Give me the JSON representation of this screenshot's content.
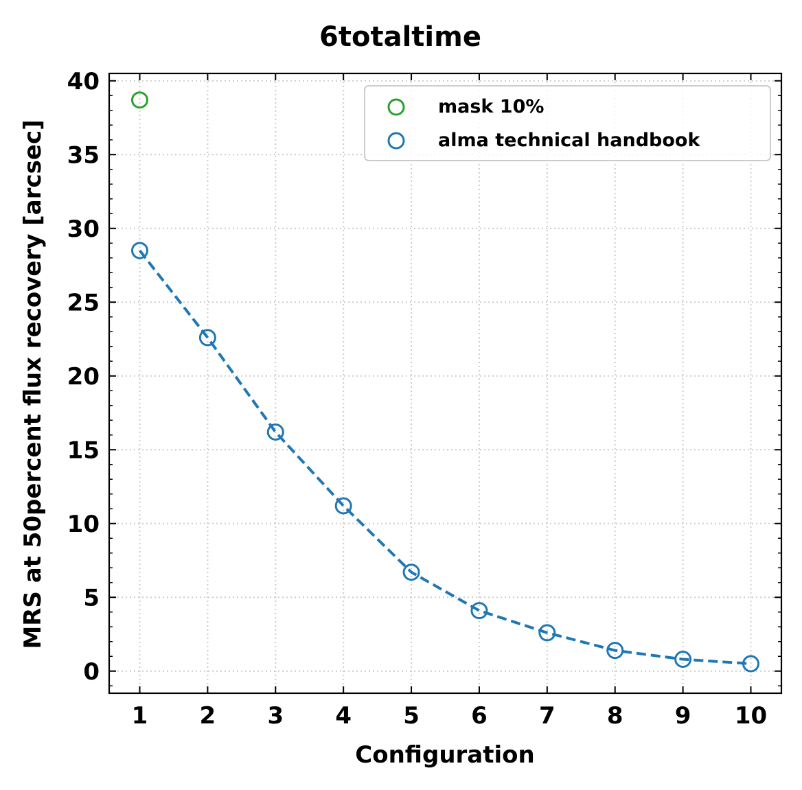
{
  "chart_data": {
    "type": "scatter",
    "title": "6totaltime",
    "xlabel": "Configuration",
    "ylabel": "MRS at 50percent flux recovery [arcsec]",
    "xlim": [
      0.55,
      10.45
    ],
    "ylim": [
      -1.5,
      40.5
    ],
    "xticks": [
      1,
      2,
      3,
      4,
      5,
      6,
      7,
      8,
      9,
      10
    ],
    "yticks": [
      0,
      5,
      10,
      15,
      20,
      25,
      30,
      35,
      40
    ],
    "grid": true,
    "legend_position": "top-right",
    "series": [
      {
        "name": "mask 10%",
        "marker": "open-circle",
        "line": "none",
        "color": "#2ca02c",
        "x": [
          1
        ],
        "y": [
          38.7
        ]
      },
      {
        "name": "alma technical handbook",
        "marker": "open-circle",
        "line": "dashed",
        "color": "#1f77b4",
        "x": [
          1,
          2,
          3,
          4,
          5,
          6,
          7,
          8,
          9,
          10
        ],
        "y": [
          28.5,
          22.6,
          16.2,
          11.2,
          6.7,
          4.1,
          2.6,
          1.4,
          0.8,
          0.5
        ]
      }
    ]
  }
}
